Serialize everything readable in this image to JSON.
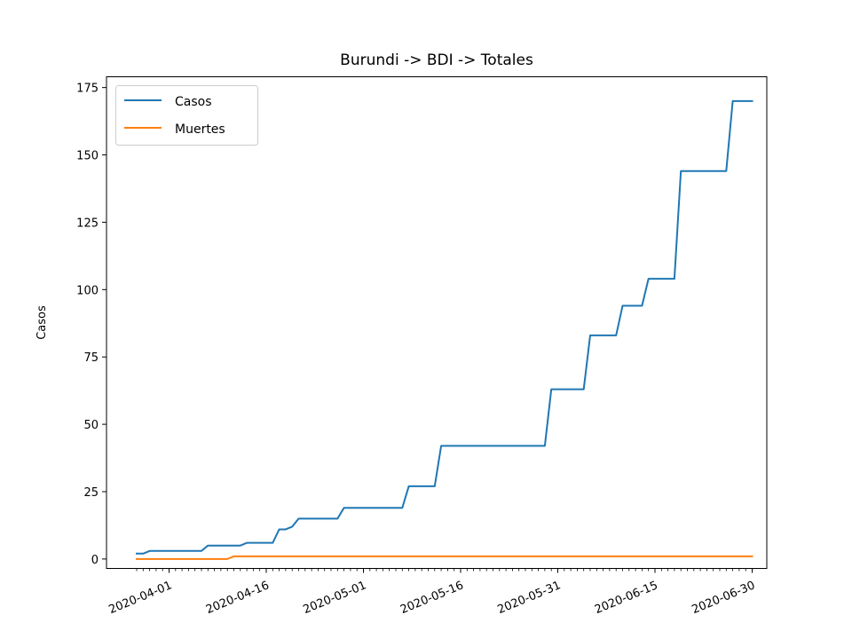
{
  "chart_data": {
    "type": "line",
    "title": "Burundi -> BDI -> Totales",
    "xlabel": "",
    "ylabel": "Casos",
    "x_start": "2020-03-27",
    "x": [
      "2020-03-27",
      "2020-03-28",
      "2020-03-29",
      "2020-03-30",
      "2020-03-31",
      "2020-04-01",
      "2020-04-02",
      "2020-04-03",
      "2020-04-04",
      "2020-04-05",
      "2020-04-06",
      "2020-04-07",
      "2020-04-08",
      "2020-04-09",
      "2020-04-10",
      "2020-04-11",
      "2020-04-12",
      "2020-04-13",
      "2020-04-14",
      "2020-04-15",
      "2020-04-16",
      "2020-04-17",
      "2020-04-18",
      "2020-04-19",
      "2020-04-20",
      "2020-04-21",
      "2020-04-22",
      "2020-04-23",
      "2020-04-24",
      "2020-04-25",
      "2020-04-26",
      "2020-04-27",
      "2020-04-28",
      "2020-04-29",
      "2020-04-30",
      "2020-05-01",
      "2020-05-02",
      "2020-05-03",
      "2020-05-04",
      "2020-05-05",
      "2020-05-06",
      "2020-05-07",
      "2020-05-08",
      "2020-05-09",
      "2020-05-10",
      "2020-05-11",
      "2020-05-12",
      "2020-05-13",
      "2020-05-14",
      "2020-05-15",
      "2020-05-16",
      "2020-05-17",
      "2020-05-18",
      "2020-05-19",
      "2020-05-20",
      "2020-05-21",
      "2020-05-22",
      "2020-05-23",
      "2020-05-24",
      "2020-05-25",
      "2020-05-26",
      "2020-05-27",
      "2020-05-28",
      "2020-05-29",
      "2020-05-30",
      "2020-05-31",
      "2020-06-01",
      "2020-06-02",
      "2020-06-03",
      "2020-06-04",
      "2020-06-05",
      "2020-06-06",
      "2020-06-07",
      "2020-06-08",
      "2020-06-09",
      "2020-06-10",
      "2020-06-11",
      "2020-06-12",
      "2020-06-13",
      "2020-06-14",
      "2020-06-15",
      "2020-06-16",
      "2020-06-17",
      "2020-06-18",
      "2020-06-19",
      "2020-06-20",
      "2020-06-21",
      "2020-06-22",
      "2020-06-23",
      "2020-06-24",
      "2020-06-25",
      "2020-06-26",
      "2020-06-27",
      "2020-06-28",
      "2020-06-29",
      "2020-06-30"
    ],
    "x_tick_labels": [
      "2020-04-01",
      "2020-04-16",
      "2020-05-01",
      "2020-05-16",
      "2020-05-31",
      "2020-06-15",
      "2020-06-30"
    ],
    "ylim": [
      -3.5,
      179
    ],
    "y_ticks": [
      0,
      25,
      50,
      75,
      100,
      125,
      150,
      175
    ],
    "legend_position": "top-left",
    "grid": false,
    "series": [
      {
        "name": "Casos",
        "color": "#1f77b4",
        "values": [
          2,
          2,
          3,
          3,
          3,
          3,
          3,
          3,
          3,
          3,
          3,
          5,
          5,
          5,
          5,
          5,
          5,
          6,
          6,
          6,
          6,
          6,
          11,
          11,
          12,
          15,
          15,
          15,
          15,
          15,
          15,
          15,
          19,
          19,
          19,
          19,
          19,
          19,
          19,
          19,
          19,
          19,
          27,
          27,
          27,
          27,
          27,
          42,
          42,
          42,
          42,
          42,
          42,
          42,
          42,
          42,
          42,
          42,
          42,
          42,
          42,
          42,
          42,
          42,
          63,
          63,
          63,
          63,
          63,
          63,
          83,
          83,
          83,
          83,
          83,
          94,
          94,
          94,
          94,
          104,
          104,
          104,
          104,
          104,
          144,
          144,
          144,
          144,
          144,
          144,
          144,
          144,
          170,
          170,
          170,
          170
        ]
      },
      {
        "name": "Muertes",
        "color": "#ff7f0e",
        "values": [
          0,
          0,
          0,
          0,
          0,
          0,
          0,
          0,
          0,
          0,
          0,
          0,
          0,
          0,
          0,
          1,
          1,
          1,
          1,
          1,
          1,
          1,
          1,
          1,
          1,
          1,
          1,
          1,
          1,
          1,
          1,
          1,
          1,
          1,
          1,
          1,
          1,
          1,
          1,
          1,
          1,
          1,
          1,
          1,
          1,
          1,
          1,
          1,
          1,
          1,
          1,
          1,
          1,
          1,
          1,
          1,
          1,
          1,
          1,
          1,
          1,
          1,
          1,
          1,
          1,
          1,
          1,
          1,
          1,
          1,
          1,
          1,
          1,
          1,
          1,
          1,
          1,
          1,
          1,
          1,
          1,
          1,
          1,
          1,
          1,
          1,
          1,
          1,
          1,
          1,
          1,
          1,
          1,
          1,
          1,
          1
        ]
      }
    ]
  }
}
